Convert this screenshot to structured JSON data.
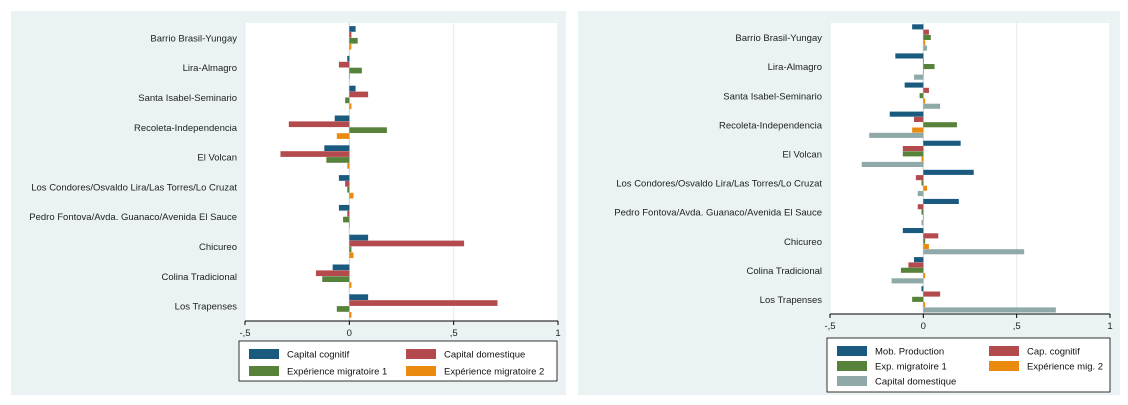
{
  "colors": {
    "background": "#eaf2f3",
    "navy": "#1b5a7f",
    "red": "#b34a4e",
    "green": "#56823a",
    "orange": "#ea8b0f",
    "gray": "#8fa9a9"
  },
  "chart_data": [
    {
      "type": "bar",
      "orientation": "horizontal",
      "title": "",
      "xlabel": "",
      "ylabel": "",
      "xlim": [
        -0.5,
        1
      ],
      "xticks": [
        {
          "value": -0.5,
          "label": "-,5"
        },
        {
          "value": 0,
          "label": "0"
        },
        {
          "value": 0.5,
          "label": ",5"
        },
        {
          "value": 1,
          "label": "1"
        }
      ],
      "grid": true,
      "legend_position": "bottom",
      "categories": [
        "Barrio Brasil-Yungay",
        "Lira-Almagro",
        "Santa Isabel-Seminario",
        "Recoleta-Independencia",
        "El Volcan",
        "Los Condores/Osvaldo Lira/Las Torres/Lo Cruzat",
        "Pedro Fontova/Avda. Guanaco/Avenida El Sauce",
        "Chicureo",
        "Colina Tradicional",
        "Los Trapenses"
      ],
      "series": [
        {
          "name": "Capital cognitif",
          "color": "#1b5a7f",
          "values": [
            0.03,
            -0.01,
            0.03,
            -0.07,
            -0.12,
            -0.05,
            -0.05,
            0.09,
            -0.08,
            0.09
          ]
        },
        {
          "name": "Capital domestique",
          "color": "#b34a4e",
          "values": [
            0.01,
            -0.05,
            0.09,
            -0.29,
            -0.33,
            -0.02,
            -0.01,
            0.55,
            -0.16,
            0.71
          ]
        },
        {
          "name": "Expérience migratoire 1",
          "color": "#56823a",
          "values": [
            0.04,
            0.06,
            -0.02,
            0.18,
            -0.11,
            -0.01,
            -0.03,
            0.01,
            -0.13,
            -0.06
          ]
        },
        {
          "name": "Expérience migratoire 2",
          "color": "#ea8b0f",
          "values": [
            0.01,
            0.0,
            0.01,
            -0.06,
            -0.01,
            0.02,
            0.0,
            0.02,
            0.01,
            0.01
          ]
        }
      ]
    },
    {
      "type": "bar",
      "orientation": "horizontal",
      "title": "",
      "xlabel": "",
      "ylabel": "",
      "xlim": [
        -0.5,
        1
      ],
      "xticks": [
        {
          "value": -0.5,
          "label": "-,5"
        },
        {
          "value": 0,
          "label": "0"
        },
        {
          "value": 0.5,
          "label": ",5"
        },
        {
          "value": 1,
          "label": "1"
        }
      ],
      "grid": true,
      "legend_position": "bottom",
      "categories": [
        "Barrio Brasil-Yungay",
        "Lira-Almagro",
        "Santa Isabel-Seminario",
        "Recoleta-Independencia",
        "El Volcan",
        "Los Condores/Osvaldo Lira/Las Torres/Lo Cruzat",
        "Pedro Fontova/Avda. Guanaco/Avenida El Sauce",
        "Chicureo",
        "Colina Tradicional",
        "Los Trapenses"
      ],
      "series": [
        {
          "name": "Mob. Production",
          "color": "#1b5a7f",
          "values": [
            -0.06,
            -0.15,
            -0.1,
            -0.18,
            0.2,
            0.27,
            0.19,
            -0.11,
            -0.05,
            -0.01
          ]
        },
        {
          "name": "Cap. cognitif",
          "color": "#b34a4e",
          "values": [
            0.03,
            0.0,
            0.03,
            -0.05,
            -0.11,
            -0.04,
            -0.03,
            0.08,
            -0.08,
            0.09
          ]
        },
        {
          "name": "Exp. migratoire 1",
          "color": "#56823a",
          "values": [
            0.04,
            0.06,
            -0.02,
            0.18,
            -0.11,
            -0.01,
            -0.01,
            0.01,
            -0.12,
            -0.06
          ]
        },
        {
          "name": "Expérience mig. 2",
          "color": "#ea8b0f",
          "values": [
            0.01,
            0.0,
            0.01,
            -0.06,
            -0.01,
            0.02,
            0.0,
            0.03,
            0.01,
            0.01
          ]
        },
        {
          "name": "Capital domestique",
          "color": "#8fa9a9",
          "values": [
            0.02,
            -0.05,
            0.09,
            -0.29,
            -0.33,
            -0.03,
            -0.01,
            0.54,
            -0.17,
            0.71
          ]
        }
      ]
    }
  ]
}
